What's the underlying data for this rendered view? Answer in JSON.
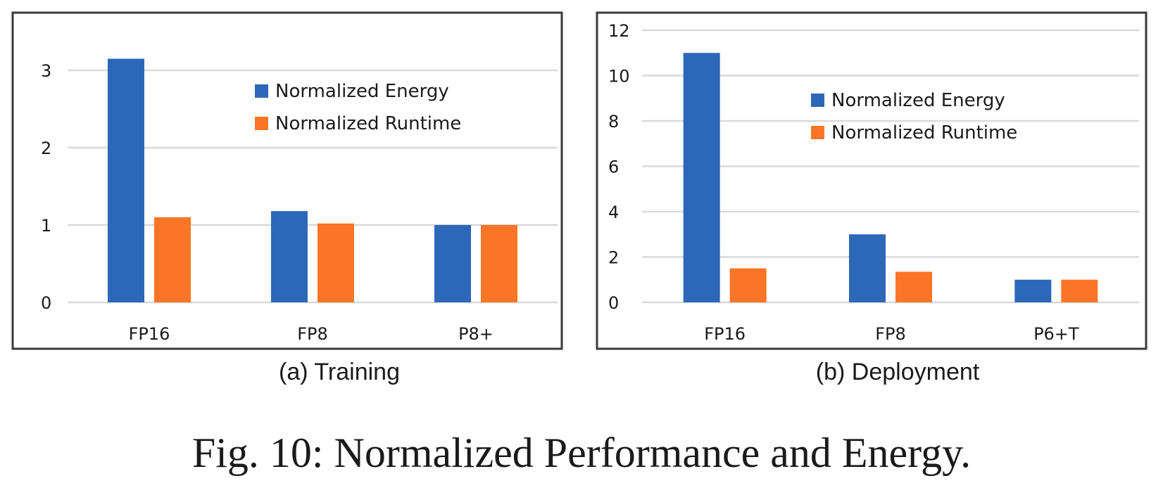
{
  "figure_caption": "Fig. 10: Normalized Performance and Energy.",
  "colors": {
    "energy": "#2d67b8",
    "runtime": "#fb7526",
    "grid": "#d9d9d9",
    "frame": "#3a3a3a"
  },
  "chart_data": [
    {
      "type": "bar",
      "caption": "(a) Training",
      "categories": [
        "FP16",
        "FP8",
        "P8+"
      ],
      "series": [
        {
          "name": "Normalized Energy",
          "values": [
            3.15,
            1.18,
            1.0
          ]
        },
        {
          "name": "Normalized Runtime",
          "values": [
            1.1,
            1.02,
            1.0
          ]
        }
      ],
      "ylim": [
        0,
        3.5
      ],
      "yticks": [
        "0",
        "1",
        "2",
        "3"
      ],
      "grid": true,
      "legend_position": "top-right"
    },
    {
      "type": "bar",
      "caption": "(b) Deployment",
      "categories": [
        "FP16",
        "FP8",
        "P6+T"
      ],
      "series": [
        {
          "name": "Normalized Energy",
          "values": [
            11.0,
            3.0,
            1.0
          ]
        },
        {
          "name": "Normalized Runtime",
          "values": [
            1.5,
            1.35,
            1.0
          ]
        }
      ],
      "ylim": [
        0,
        12
      ],
      "yticks": [
        "0",
        "2",
        "4",
        "6",
        "8",
        "10",
        "12"
      ],
      "grid": true,
      "legend_position": "top-right"
    }
  ]
}
